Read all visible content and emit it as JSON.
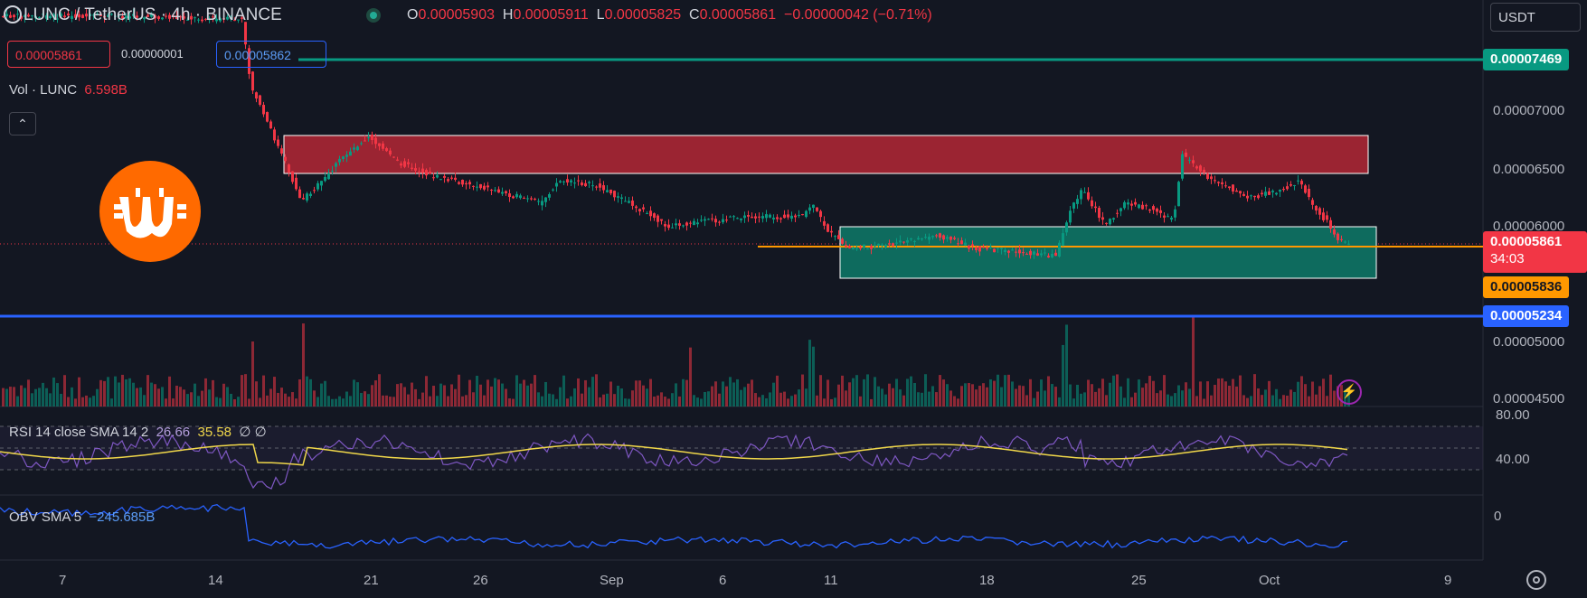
{
  "header": {
    "symbol": "LUNC / TetherUS · 4h · BINANCE",
    "ohlc": [
      {
        "k": "O",
        "v": "0.00005903"
      },
      {
        "k": "H",
        "v": "0.00005911"
      },
      {
        "k": "L",
        "v": "0.00005825"
      },
      {
        "k": "C",
        "v": "0.00005861"
      }
    ],
    "change": "−0.00000042 (−0.71%)",
    "currency": "USDT"
  },
  "order_boxes": {
    "sell": "0.00005861",
    "spread": "0.00000001",
    "buy": "0.00005862"
  },
  "volume": {
    "label": "Vol · LUNC",
    "value": "6.598B"
  },
  "price_axis": [
    "0.00007000",
    "0.00006500",
    "0.00006000",
    "0.00005000",
    "0.00004500"
  ],
  "price_tags": [
    {
      "name": "green-level-tag",
      "text": "0.00007469",
      "bg": "#089981"
    },
    {
      "name": "last-price-tag",
      "text": "0.00005861",
      "bg": "#f23645"
    },
    {
      "name": "countdown-tag",
      "text": "34:03",
      "bg": "#f23645"
    },
    {
      "name": "orange-level-tag",
      "text": "0.00005836",
      "bg": "#ff9800"
    },
    {
      "name": "blue-level-tag",
      "text": "0.00005234",
      "bg": "#2962ff"
    }
  ],
  "rsi": {
    "label": "RSI 14 close SMA 14 2",
    "value": "26.66",
    "sma": "35.58",
    "extra": "∅ ∅",
    "axis": [
      "80.00",
      "40.00"
    ]
  },
  "obv": {
    "label": "OBV SMA 5",
    "value": "−245.685B",
    "axis": "0"
  },
  "x_axis": [
    "7",
    "14",
    "21",
    "26",
    "Sep",
    "6",
    "11",
    "18",
    "25",
    "Oct",
    "9"
  ],
  "colors": {
    "up": "#089981",
    "down": "#f23645",
    "bg": "#131722",
    "rsi_line": "#7e57c2",
    "rsi_sma": "#f0d74a",
    "obv_line": "#2962ff"
  },
  "icons": [
    "settings-gear-icon",
    "lightning-icon",
    "collapse-chevron-icon",
    "brand-logo-icon"
  ]
}
